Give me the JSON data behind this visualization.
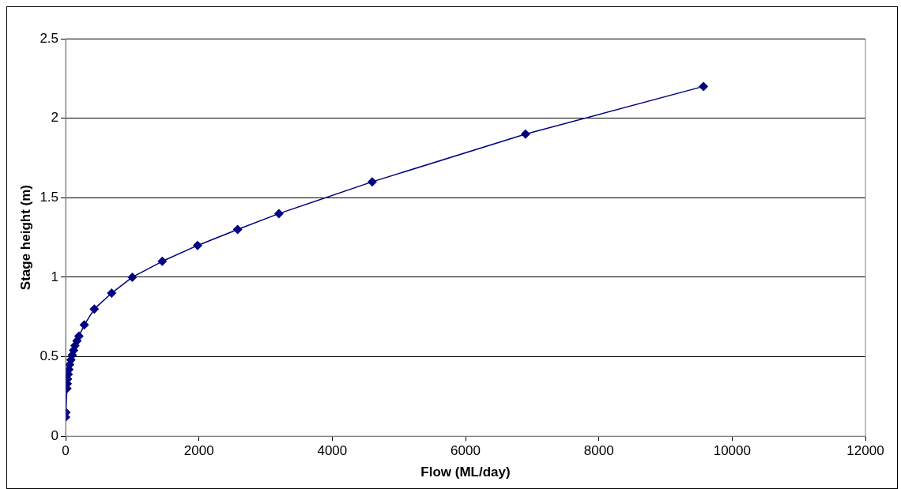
{
  "chart_data": {
    "type": "line",
    "xlabel": "Flow (ML/day)",
    "ylabel": "Stage height (m)",
    "xlim": [
      0,
      12000
    ],
    "xticks": [
      0,
      2000,
      4000,
      6000,
      8000,
      10000,
      12000
    ],
    "ylim": [
      0,
      2.5
    ],
    "yticks": [
      0,
      0.5,
      1,
      1.5,
      2,
      2.5
    ],
    "grid": "y",
    "legend": false,
    "marker": "diamond",
    "line_style": "solid",
    "series": [
      {
        "color": "#000080",
        "x": [
          0,
          5,
          20,
          25,
          30,
          40,
          50,
          60,
          80,
          100,
          120,
          140,
          170,
          200,
          280,
          430,
          690,
          1000,
          1450,
          1980,
          2580,
          3200,
          4600,
          6900,
          9570
        ],
        "values": [
          0.12,
          0.15,
          0.3,
          0.33,
          0.36,
          0.39,
          0.42,
          0.45,
          0.48,
          0.51,
          0.54,
          0.57,
          0.6,
          0.63,
          0.7,
          0.8,
          0.9,
          1,
          1.1,
          1.2,
          1.3,
          1.4,
          1.6,
          1.9,
          2.2
        ]
      }
    ]
  }
}
